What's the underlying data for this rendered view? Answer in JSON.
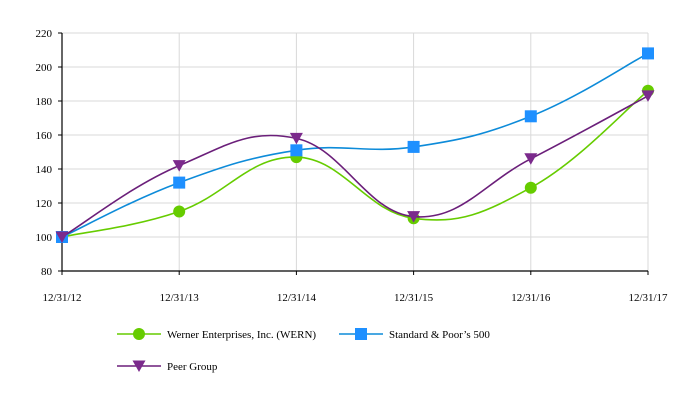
{
  "chart_data": {
    "type": "line",
    "title": "",
    "xlabel": "",
    "ylabel": "",
    "categories": [
      "12/31/12",
      "12/31/13",
      "12/31/14",
      "12/31/15",
      "12/31/16",
      "12/31/17"
    ],
    "ylim": [
      80,
      220
    ],
    "yticks": [
      80,
      100,
      120,
      140,
      160,
      180,
      200,
      220
    ],
    "grid": true,
    "smooth": true,
    "legend_position": "bottom",
    "series": [
      {
        "name": "Werner Enterprises, Inc. (WERN)",
        "values": [
          100,
          115,
          147,
          111,
          129,
          186
        ],
        "color": "#66cc00",
        "marker": "circle",
        "marker_color": "#66cc00"
      },
      {
        "name": "Standard & Poor’s 500",
        "values": [
          100,
          132,
          151,
          153,
          171,
          208
        ],
        "color": "#0d8bd9",
        "marker": "square",
        "marker_color": "#1e90ff"
      },
      {
        "name": "Peer Group",
        "values": [
          100,
          142,
          158,
          112,
          146,
          183
        ],
        "color": "#6b1f7a",
        "marker": "triangle-down",
        "marker_color": "#7b2a8c"
      }
    ]
  }
}
